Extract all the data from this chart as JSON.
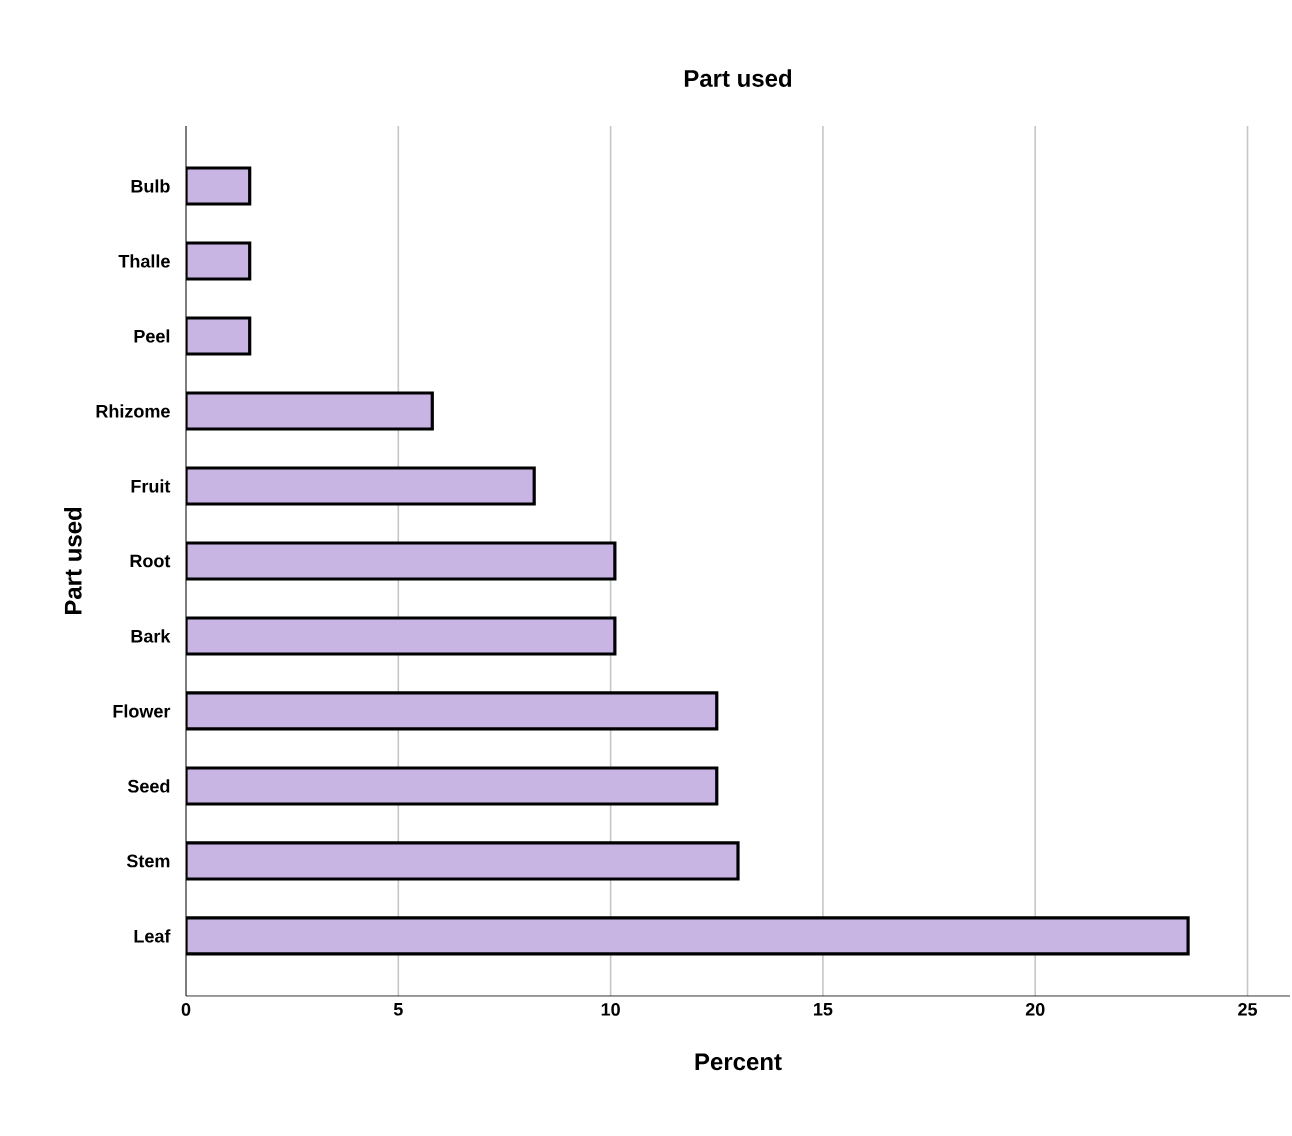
{
  "chart_data": {
    "type": "bar",
    "orientation": "horizontal",
    "title": "Part used",
    "xlabel": "Percent",
    "ylabel": "Part used",
    "categories": [
      "Bulb",
      "Thalle",
      "Peel",
      "Rhizome",
      "Fruit",
      "Root",
      "Bark",
      "Flower",
      "Seed",
      "Stem",
      "Leaf"
    ],
    "values": [
      1.5,
      1.5,
      1.5,
      5.8,
      8.2,
      10.1,
      10.1,
      12.5,
      12.5,
      13.0,
      23.6
    ],
    "color": "#c9b5e4",
    "xlim": [
      0,
      26
    ],
    "xticks": [
      0,
      5,
      10,
      15,
      20,
      25
    ],
    "grid": "x"
  }
}
